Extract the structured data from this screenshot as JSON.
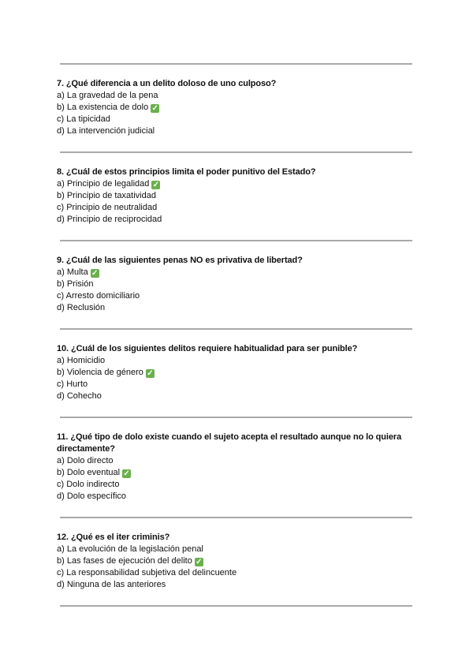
{
  "questions": [
    {
      "title": "7. ¿Qué diferencia a un delito doloso de uno culposo?",
      "options": [
        "a) La gravedad de la pena",
        "b) La existencia de dolo",
        "c) La tipicidad",
        "d) La intervención judicial"
      ],
      "correct": 1
    },
    {
      "title": "8. ¿Cuál de estos principios limita el poder punitivo del Estado?",
      "options": [
        "a) Principio de legalidad",
        "b) Principio de taxatividad",
        "c) Principio de neutralidad",
        "d) Principio de reciprocidad"
      ],
      "correct": 0
    },
    {
      "title": "9. ¿Cuál de las siguientes penas NO es privativa de libertad?",
      "options": [
        "a) Multa",
        "b) Prisión",
        "c) Arresto domiciliario",
        "d) Reclusión"
      ],
      "correct": 0
    },
    {
      "title": "10. ¿Cuál de los siguientes delitos requiere habitualidad para ser punible?",
      "options": [
        "a) Homicidio",
        "b) Violencia de género",
        "c) Hurto",
        "d) Cohecho"
      ],
      "correct": 1
    },
    {
      "title": "11. ¿Qué tipo de dolo existe cuando el sujeto acepta el resultado aunque no lo quiera directamente?",
      "options": [
        "a) Dolo directo",
        "b) Dolo eventual",
        "c) Dolo indirecto",
        "d) Dolo específico"
      ],
      "correct": 1
    },
    {
      "title": "12. ¿Qué es el iter criminis?",
      "options": [
        "a) La evolución de la legislación penal",
        "b) Las fases de ejecución del delito",
        "c) La responsabilidad subjetiva del delincuente",
        "d) Ninguna de las anteriores"
      ],
      "correct": 1
    }
  ],
  "correct_marker_icon": "green-check-box-icon",
  "colors": {
    "check": "#6ab04c",
    "divider": "#a9a9a9"
  }
}
